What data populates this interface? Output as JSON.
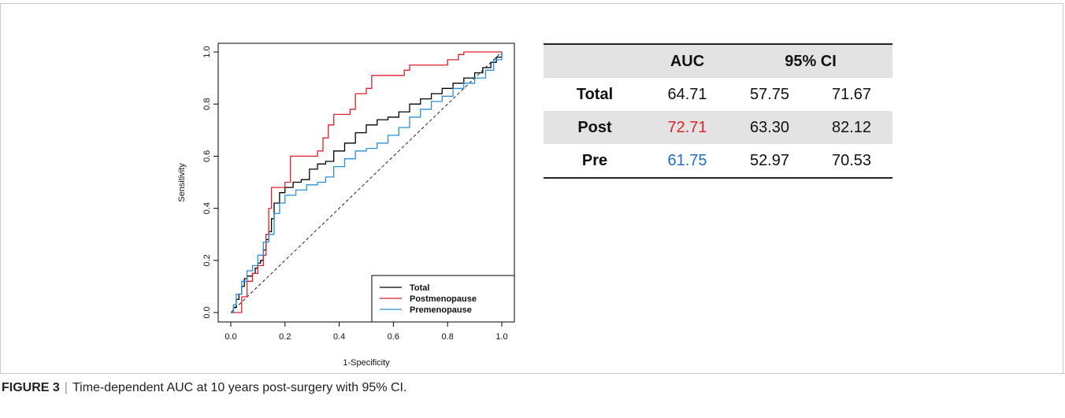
{
  "caption": {
    "label": "FIGURE 3",
    "text": "Time-dependent AUC at 10 years post-surgery with 95% CI."
  },
  "table": {
    "headers": [
      "",
      "AUC",
      "95% CI"
    ],
    "rows": [
      {
        "label": "Total",
        "auc": "64.71",
        "lo": "57.75",
        "hi": "71.67",
        "auc_color": "#111111"
      },
      {
        "label": "Post",
        "auc": "72.71",
        "lo": "63.30",
        "hi": "82.12",
        "auc_color": "#e0202a"
      },
      {
        "label": "Pre",
        "auc": "61.75",
        "lo": "52.97",
        "hi": "70.53",
        "auc_color": "#1f6fc4"
      }
    ]
  },
  "chart_data": {
    "type": "line",
    "xlabel": "1-Specificity",
    "ylabel": "Sensitivity",
    "xlim": [
      0,
      1
    ],
    "ylim": [
      0,
      1
    ],
    "xticks": [
      "0.0",
      "0.2",
      "0.4",
      "0.6",
      "0.8",
      "1.0"
    ],
    "yticks": [
      "0.0",
      "0.2",
      "0.4",
      "0.6",
      "0.8",
      "1.0"
    ],
    "legend_position": "bottom-right",
    "reference_line": "diagonal dashed",
    "series": [
      {
        "name": "Total",
        "color": "#000000",
        "points": [
          [
            0,
            0
          ],
          [
            0.01,
            0.02
          ],
          [
            0.02,
            0.05
          ],
          [
            0.03,
            0.07
          ],
          [
            0.04,
            0.1
          ],
          [
            0.05,
            0.13
          ],
          [
            0.06,
            0.14
          ],
          [
            0.08,
            0.15
          ],
          [
            0.09,
            0.17
          ],
          [
            0.1,
            0.19
          ],
          [
            0.11,
            0.2
          ],
          [
            0.12,
            0.24
          ],
          [
            0.13,
            0.28
          ],
          [
            0.14,
            0.31
          ],
          [
            0.15,
            0.36
          ],
          [
            0.16,
            0.42
          ],
          [
            0.18,
            0.46
          ],
          [
            0.2,
            0.48
          ],
          [
            0.23,
            0.5
          ],
          [
            0.26,
            0.51
          ],
          [
            0.29,
            0.55
          ],
          [
            0.32,
            0.57
          ],
          [
            0.35,
            0.58
          ],
          [
            0.38,
            0.62
          ],
          [
            0.42,
            0.65
          ],
          [
            0.46,
            0.69
          ],
          [
            0.5,
            0.72
          ],
          [
            0.54,
            0.74
          ],
          [
            0.58,
            0.75
          ],
          [
            0.62,
            0.77
          ],
          [
            0.66,
            0.8
          ],
          [
            0.7,
            0.82
          ],
          [
            0.74,
            0.84
          ],
          [
            0.78,
            0.86
          ],
          [
            0.82,
            0.88
          ],
          [
            0.86,
            0.9
          ],
          [
            0.9,
            0.92
          ],
          [
            0.93,
            0.94
          ],
          [
            0.96,
            0.96
          ],
          [
            0.98,
            0.98
          ],
          [
            1,
            1
          ]
        ]
      },
      {
        "name": "Postmenopause",
        "color": "#e0202a",
        "points": [
          [
            0,
            0
          ],
          [
            0.04,
            0.06
          ],
          [
            0.06,
            0.12
          ],
          [
            0.08,
            0.15
          ],
          [
            0.1,
            0.18
          ],
          [
            0.12,
            0.22
          ],
          [
            0.13,
            0.3
          ],
          [
            0.14,
            0.4
          ],
          [
            0.15,
            0.48
          ],
          [
            0.2,
            0.5
          ],
          [
            0.22,
            0.6
          ],
          [
            0.32,
            0.62
          ],
          [
            0.34,
            0.67
          ],
          [
            0.36,
            0.72
          ],
          [
            0.38,
            0.76
          ],
          [
            0.44,
            0.78
          ],
          [
            0.46,
            0.84
          ],
          [
            0.5,
            0.86
          ],
          [
            0.52,
            0.91
          ],
          [
            0.64,
            0.93
          ],
          [
            0.66,
            0.95
          ],
          [
            0.8,
            0.97
          ],
          [
            0.84,
            0.99
          ],
          [
            0.86,
            1.0
          ],
          [
            1,
            1
          ]
        ]
      },
      {
        "name": "Premenopause",
        "color": "#2a8fd8",
        "points": [
          [
            0,
            0
          ],
          [
            0.01,
            0.03
          ],
          [
            0.02,
            0.07
          ],
          [
            0.04,
            0.12
          ],
          [
            0.06,
            0.16
          ],
          [
            0.08,
            0.18
          ],
          [
            0.1,
            0.22
          ],
          [
            0.12,
            0.27
          ],
          [
            0.14,
            0.3
          ],
          [
            0.16,
            0.38
          ],
          [
            0.18,
            0.42
          ],
          [
            0.2,
            0.45
          ],
          [
            0.24,
            0.47
          ],
          [
            0.28,
            0.49
          ],
          [
            0.32,
            0.5
          ],
          [
            0.35,
            0.52
          ],
          [
            0.38,
            0.56
          ],
          [
            0.42,
            0.59
          ],
          [
            0.46,
            0.62
          ],
          [
            0.5,
            0.63
          ],
          [
            0.54,
            0.65
          ],
          [
            0.58,
            0.68
          ],
          [
            0.62,
            0.71
          ],
          [
            0.66,
            0.75
          ],
          [
            0.7,
            0.78
          ],
          [
            0.74,
            0.81
          ],
          [
            0.78,
            0.83
          ],
          [
            0.82,
            0.86
          ],
          [
            0.86,
            0.88
          ],
          [
            0.9,
            0.9
          ],
          [
            0.94,
            0.93
          ],
          [
            0.97,
            0.97
          ],
          [
            1,
            1
          ]
        ]
      }
    ]
  }
}
